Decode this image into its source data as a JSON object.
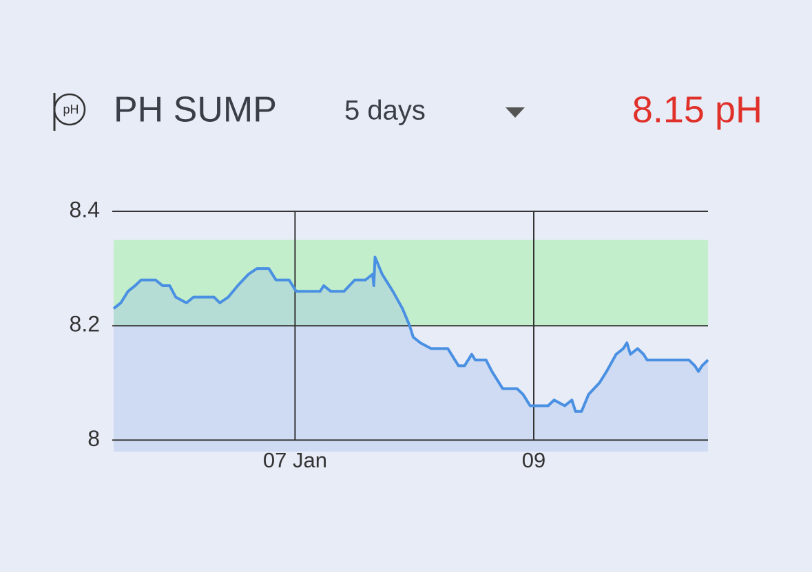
{
  "header": {
    "icon_text": "pH",
    "title": "PH SUMP",
    "period": "5 days",
    "reading": "8.15 pH"
  },
  "chart_data": {
    "type": "line",
    "x": [
      5.48,
      5.54,
      5.6,
      5.66,
      5.71,
      5.83,
      5.89,
      5.95,
      6.0,
      6.09,
      6.15,
      6.32,
      6.37,
      6.44,
      6.52,
      6.61,
      6.68,
      6.78,
      6.84,
      6.95,
      7.01,
      7.21,
      7.24,
      7.3,
      7.41,
      7.5,
      7.59,
      7.65,
      7.66,
      7.67,
      7.73,
      7.82,
      7.9,
      7.96,
      7.99,
      8.05,
      8.14,
      8.28,
      8.37,
      8.42,
      8.48,
      8.51,
      8.6,
      8.65,
      8.74,
      8.86,
      8.91,
      8.97,
      9.12,
      9.17,
      9.26,
      9.32,
      9.35,
      9.4,
      9.46,
      9.55,
      9.61,
      9.69,
      9.75,
      9.78,
      9.81,
      9.87,
      9.92,
      9.95,
      10.3,
      10.35,
      10.38,
      10.41,
      10.46
    ],
    "series": [
      {
        "name": "pH",
        "color": "#4a90e2",
        "values": [
          8.23,
          8.24,
          8.26,
          8.27,
          8.28,
          8.28,
          8.27,
          8.27,
          8.25,
          8.24,
          8.25,
          8.25,
          8.24,
          8.25,
          8.27,
          8.29,
          8.3,
          8.3,
          8.28,
          8.28,
          8.26,
          8.26,
          8.27,
          8.26,
          8.26,
          8.28,
          8.28,
          8.29,
          8.27,
          8.32,
          8.29,
          8.26,
          8.23,
          8.2,
          8.18,
          8.17,
          8.16,
          8.16,
          8.13,
          8.13,
          8.15,
          8.14,
          8.14,
          8.12,
          8.09,
          8.09,
          8.08,
          8.06,
          8.06,
          8.07,
          8.06,
          8.07,
          8.05,
          8.05,
          8.08,
          8.1,
          8.12,
          8.15,
          8.16,
          8.17,
          8.15,
          8.16,
          8.15,
          8.14,
          8.14,
          8.13,
          8.12,
          8.13,
          8.14
        ]
      }
    ],
    "xlim": [
      5.48,
      10.46
    ],
    "xticks": [
      {
        "value": 7,
        "label": "07 Jan"
      },
      {
        "value": 9,
        "label": "09"
      }
    ],
    "ylim": [
      7.98,
      8.4
    ],
    "yticks": [
      8,
      8.2,
      8.4
    ],
    "target_range": [
      8.2,
      8.35
    ],
    "target_color": "#c3eecb",
    "area_fill": "#9dbce9",
    "grid": true
  }
}
